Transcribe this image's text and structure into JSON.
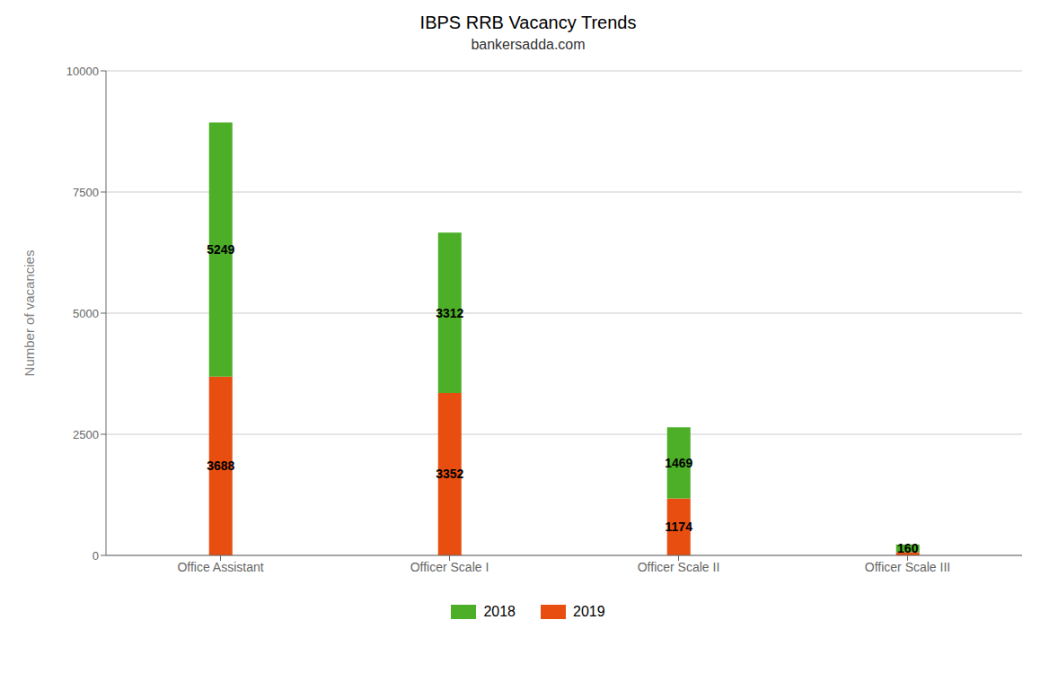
{
  "chart_data": {
    "type": "bar",
    "stacked": true,
    "title": "IBPS RRB Vacancy Trends",
    "subtitle": "bankersadda.com",
    "categories": [
      "Office Assistant",
      "Officer Scale I",
      "Officer Scale II",
      "Officer Scale III"
    ],
    "series": [
      {
        "name": "2019",
        "color": "#e84e0f",
        "values": [
          3688,
          3352,
          1174,
          65
        ],
        "value_labels": [
          "3688",
          "3352",
          "1174",
          null
        ]
      },
      {
        "name": "2018",
        "color": "#4caf27",
        "values": [
          5249,
          3312,
          1469,
          160
        ]
      }
    ],
    "ylabel": "Number of vacancies",
    "ylim": [
      0,
      10000
    ],
    "yticks": [
      0,
      2500,
      5000,
      7500,
      10000
    ],
    "grid": true,
    "data_labels": true
  }
}
